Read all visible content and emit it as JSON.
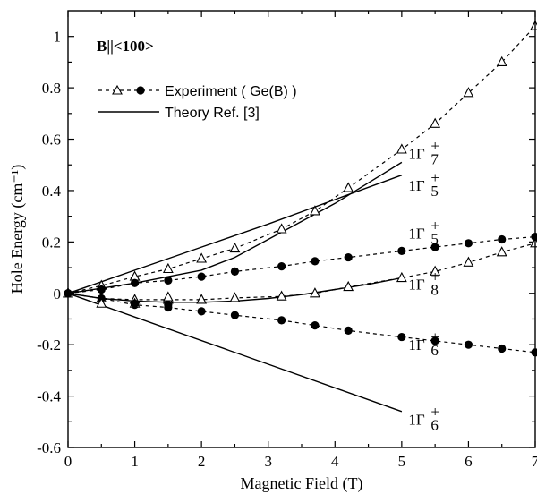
{
  "chart_data": {
    "type": "line",
    "xlabel": "Magnetic Field (T)",
    "ylabel": "Hole Energy (cm⁻¹)",
    "xlim": [
      0,
      7
    ],
    "ylim": [
      -0.6,
      1.1
    ],
    "xticks": [
      0,
      1,
      2,
      3,
      4,
      5,
      6,
      7
    ],
    "yticks": [
      -0.6,
      -0.4,
      -0.2,
      0,
      0.2,
      0.4,
      0.6,
      0.8,
      1
    ],
    "xtick_labels": [
      "0",
      "1",
      "2",
      "3",
      "4",
      "5",
      "6",
      "7"
    ],
    "ytick_labels": [
      "-0.6",
      "-0.4",
      "-0.2",
      "0",
      "0.2",
      "0.4",
      "0.6",
      "0.8",
      "1"
    ],
    "annotation": "B||<100>",
    "legend": [
      {
        "label": "Experiment ( Ge(B) )",
        "style": "dashed with open triangles and filled circles"
      },
      {
        "label": "Theory Ref. [3]",
        "style": "solid"
      }
    ],
    "experiment": {
      "triangles_upper": {
        "x": [
          0,
          0.5,
          1.0,
          1.5,
          2.0,
          2.5,
          3.2,
          3.7,
          4.2,
          5.0,
          5.5,
          6.0,
          6.5,
          7.0
        ],
        "y": [
          0,
          0.03,
          0.065,
          0.095,
          0.135,
          0.175,
          0.25,
          0.32,
          0.41,
          0.56,
          0.66,
          0.78,
          0.9,
          1.04
        ]
      },
      "triangles_lower": {
        "x": [
          0,
          0.5,
          1.0,
          1.5,
          2.0,
          2.5,
          3.2,
          3.7,
          4.2,
          5.0,
          5.5,
          6.0,
          6.5,
          7.0
        ],
        "y": [
          0,
          -0.02,
          -0.025,
          -0.025,
          -0.025,
          -0.018,
          -0.012,
          0.0,
          0.025,
          0.06,
          0.085,
          0.12,
          0.16,
          0.195
        ]
      },
      "triangles_extra": {
        "x": [
          0.5,
          1.0,
          1.5
        ],
        "y": [
          -0.04,
          -0.04,
          -0.015
        ]
      },
      "circles_upper": {
        "x": [
          0,
          0.5,
          1.0,
          1.5,
          2.0,
          2.5,
          3.2,
          3.7,
          4.2,
          5.0,
          5.5,
          6.0,
          6.5,
          7.0
        ],
        "y": [
          0,
          0.015,
          0.04,
          0.05,
          0.065,
          0.085,
          0.105,
          0.125,
          0.14,
          0.165,
          0.18,
          0.195,
          0.21,
          0.22
        ]
      },
      "circles_lower": {
        "x": [
          0,
          0.5,
          1.0,
          1.5,
          2.0,
          2.5,
          3.2,
          3.7,
          4.2,
          5.0,
          5.5,
          6.0,
          6.5,
          7.0
        ],
        "y": [
          0,
          -0.02,
          -0.045,
          -0.055,
          -0.07,
          -0.085,
          -0.105,
          -0.125,
          -0.145,
          -0.17,
          -0.185,
          -0.2,
          -0.215,
          -0.23
        ]
      },
      "circles_extra": {
        "x": [
          1.0,
          1.5
        ],
        "y": [
          -0.04,
          -0.045
        ]
      }
    },
    "theory": [
      {
        "x": [
          0,
          1,
          2,
          3,
          4,
          5
        ],
        "y": [
          0,
          0.09,
          0.18,
          0.27,
          0.365,
          0.46
        ]
      },
      {
        "x": [
          0,
          1,
          2,
          2.5,
          3,
          3.5,
          4,
          4.5,
          5
        ],
        "y": [
          0,
          0.04,
          0.09,
          0.14,
          0.21,
          0.28,
          0.35,
          0.43,
          0.51
        ]
      },
      {
        "x": [
          0,
          0.5,
          1,
          1.5,
          2,
          2.5,
          3,
          3.5,
          4,
          4.5,
          5
        ],
        "y": [
          0,
          -0.02,
          -0.03,
          -0.035,
          -0.035,
          -0.03,
          -0.02,
          -0.005,
          0.015,
          0.035,
          0.06
        ]
      },
      {
        "x": [
          0,
          5
        ],
        "y": [
          0,
          -0.46
        ]
      }
    ],
    "curve_labels": [
      {
        "text": "1Γ⁷⁺",
        "main": "1Γ",
        "sup": "+",
        "sub": "7",
        "x": 5.1,
        "y": 0.545
      },
      {
        "text": "1Γ₅⁺",
        "main": "1Γ",
        "sup": "+",
        "sub": "5",
        "x": 5.1,
        "y": 0.42
      },
      {
        "text": "1Γ₅⁺",
        "main": "1Γ",
        "sup": "+",
        "sub": "5",
        "x": 5.1,
        "y": 0.235
      },
      {
        "text": "1Γ₈⁺",
        "main": "1Γ",
        "sup": "+",
        "sub": "8",
        "x": 5.1,
        "y": 0.035
      },
      {
        "text": "1Γ₆⁺",
        "main": "1Γ",
        "sup": "+",
        "sub": "6",
        "x": 5.1,
        "y": -0.2
      },
      {
        "text": "1Γ₆⁺",
        "main": "1Γ",
        "sup": "+",
        "sub": "6",
        "x": 5.1,
        "y": -0.49
      }
    ]
  }
}
